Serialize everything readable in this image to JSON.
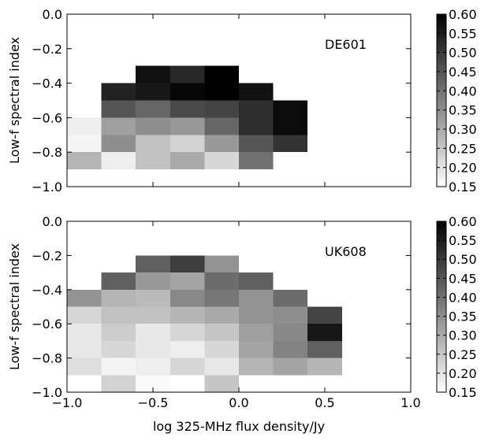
{
  "xlabel": "log 325-MHz flux density/Jy",
  "colorbar_ticks": [
    "0.60",
    "0.55",
    "0.50",
    "0.45",
    "0.40",
    "0.35",
    "0.30",
    "0.25",
    "0.20",
    "0.15"
  ],
  "chart_data": [
    {
      "type": "heatmap",
      "title": "DE601",
      "ylabel": "Low-f spectral index",
      "xlabel": "",
      "xlim": [
        -1.0,
        1.0
      ],
      "ylim": [
        -1.0,
        0.0
      ],
      "clim": [
        0.15,
        0.6
      ],
      "colormap": "gray_r",
      "x_bin_edges": [
        -1.0,
        -0.8,
        -0.6,
        -0.4,
        -0.2,
        0.0,
        0.2,
        0.4
      ],
      "y_bin_edges": [
        -0.9,
        -0.8,
        -0.7,
        -0.6,
        -0.5,
        -0.4,
        -0.3
      ],
      "y_ticks": [
        "0.0",
        "−0.2",
        "−0.4",
        "−0.6",
        "−0.8",
        "−1.0"
      ],
      "cells": [
        {
          "x": -0.9,
          "y": -0.85,
          "value": 0.28
        },
        {
          "x": -0.7,
          "y": -0.85,
          "value": 0.18
        },
        {
          "x": -0.5,
          "y": -0.85,
          "value": 0.26
        },
        {
          "x": -0.3,
          "y": -0.85,
          "value": 0.3
        },
        {
          "x": -0.1,
          "y": -0.85,
          "value": 0.22
        },
        {
          "x": 0.1,
          "y": -0.85,
          "value": 0.4
        },
        {
          "x": -0.9,
          "y": -0.75,
          "value": 0.17
        },
        {
          "x": -0.7,
          "y": -0.75,
          "value": 0.35
        },
        {
          "x": -0.5,
          "y": -0.75,
          "value": 0.26
        },
        {
          "x": -0.3,
          "y": -0.75,
          "value": 0.23
        },
        {
          "x": -0.1,
          "y": -0.75,
          "value": 0.33
        },
        {
          "x": 0.1,
          "y": -0.75,
          "value": 0.45
        },
        {
          "x": 0.3,
          "y": -0.75,
          "value": 0.51
        },
        {
          "x": -0.9,
          "y": -0.65,
          "value": 0.18
        },
        {
          "x": -0.7,
          "y": -0.65,
          "value": 0.32
        },
        {
          "x": -0.5,
          "y": -0.65,
          "value": 0.35
        },
        {
          "x": -0.3,
          "y": -0.65,
          "value": 0.33
        },
        {
          "x": -0.1,
          "y": -0.65,
          "value": 0.42
        },
        {
          "x": 0.1,
          "y": -0.65,
          "value": 0.52
        },
        {
          "x": 0.3,
          "y": -0.65,
          "value": 0.58
        },
        {
          "x": -0.7,
          "y": -0.55,
          "value": 0.45
        },
        {
          "x": -0.5,
          "y": -0.55,
          "value": 0.42
        },
        {
          "x": -0.3,
          "y": -0.55,
          "value": 0.47
        },
        {
          "x": -0.1,
          "y": -0.55,
          "value": 0.48
        },
        {
          "x": 0.1,
          "y": -0.55,
          "value": 0.52
        },
        {
          "x": 0.3,
          "y": -0.55,
          "value": 0.58
        },
        {
          "x": -0.7,
          "y": -0.45,
          "value": 0.54
        },
        {
          "x": -0.5,
          "y": -0.45,
          "value": 0.56
        },
        {
          "x": -0.3,
          "y": -0.45,
          "value": 0.59
        },
        {
          "x": -0.1,
          "y": -0.45,
          "value": 0.6
        },
        {
          "x": 0.1,
          "y": -0.45,
          "value": 0.57
        },
        {
          "x": -0.5,
          "y": -0.35,
          "value": 0.57
        },
        {
          "x": -0.3,
          "y": -0.35,
          "value": 0.53
        },
        {
          "x": -0.1,
          "y": -0.35,
          "value": 0.6
        }
      ]
    },
    {
      "type": "heatmap",
      "title": "UK608",
      "ylabel": "Low-f spectral index",
      "xlabel": "log 325-MHz flux density/Jy",
      "xlim": [
        -1.0,
        1.0
      ],
      "ylim": [
        -1.0,
        0.0
      ],
      "clim": [
        0.15,
        0.6
      ],
      "colormap": "gray_r",
      "x_bin_edges": [
        -1.0,
        -0.8,
        -0.6,
        -0.4,
        -0.2,
        0.0,
        0.2,
        0.4,
        0.6
      ],
      "y_bin_edges": [
        -1.0,
        -0.9,
        -0.8,
        -0.7,
        -0.6,
        -0.5,
        -0.4,
        -0.3,
        -0.2
      ],
      "x_ticks": [
        "−1.0",
        "−0.5",
        "0.0",
        "0.5",
        "1.0"
      ],
      "y_ticks": [
        "0.0",
        "−0.2",
        "−0.4",
        "−0.6",
        "−0.8",
        "−1.0"
      ],
      "cells": [
        {
          "x": -0.7,
          "y": -0.95,
          "value": 0.23
        },
        {
          "x": -0.5,
          "y": -0.95,
          "value": 0.16
        },
        {
          "x": -0.1,
          "y": -0.95,
          "value": 0.25
        },
        {
          "x": -0.9,
          "y": -0.85,
          "value": 0.21
        },
        {
          "x": -0.7,
          "y": -0.85,
          "value": 0.17
        },
        {
          "x": -0.5,
          "y": -0.85,
          "value": 0.18
        },
        {
          "x": -0.3,
          "y": -0.85,
          "value": 0.22
        },
        {
          "x": -0.1,
          "y": -0.85,
          "value": 0.19
        },
        {
          "x": 0.1,
          "y": -0.85,
          "value": 0.28
        },
        {
          "x": 0.3,
          "y": -0.85,
          "value": 0.31
        },
        {
          "x": 0.5,
          "y": -0.85,
          "value": 0.28
        },
        {
          "x": -0.9,
          "y": -0.75,
          "value": 0.19
        },
        {
          "x": -0.7,
          "y": -0.75,
          "value": 0.22
        },
        {
          "x": -0.5,
          "y": -0.75,
          "value": 0.19
        },
        {
          "x": -0.3,
          "y": -0.75,
          "value": 0.18
        },
        {
          "x": -0.1,
          "y": -0.75,
          "value": 0.22
        },
        {
          "x": 0.1,
          "y": -0.75,
          "value": 0.31
        },
        {
          "x": 0.3,
          "y": -0.75,
          "value": 0.37
        },
        {
          "x": 0.5,
          "y": -0.75,
          "value": 0.43
        },
        {
          "x": -0.9,
          "y": -0.65,
          "value": 0.19
        },
        {
          "x": -0.7,
          "y": -0.65,
          "value": 0.24
        },
        {
          "x": -0.5,
          "y": -0.65,
          "value": 0.19
        },
        {
          "x": -0.3,
          "y": -0.65,
          "value": 0.22
        },
        {
          "x": -0.1,
          "y": -0.65,
          "value": 0.25
        },
        {
          "x": 0.1,
          "y": -0.65,
          "value": 0.32
        },
        {
          "x": 0.3,
          "y": -0.65,
          "value": 0.36
        },
        {
          "x": 0.5,
          "y": -0.65,
          "value": 0.56
        },
        {
          "x": -0.9,
          "y": -0.55,
          "value": 0.22
        },
        {
          "x": -0.7,
          "y": -0.55,
          "value": 0.26
        },
        {
          "x": -0.5,
          "y": -0.55,
          "value": 0.26
        },
        {
          "x": -0.3,
          "y": -0.55,
          "value": 0.28
        },
        {
          "x": -0.1,
          "y": -0.55,
          "value": 0.3
        },
        {
          "x": 0.1,
          "y": -0.55,
          "value": 0.34
        },
        {
          "x": 0.3,
          "y": -0.55,
          "value": 0.35
        },
        {
          "x": 0.5,
          "y": -0.55,
          "value": 0.48
        },
        {
          "x": -0.9,
          "y": -0.45,
          "value": 0.34
        },
        {
          "x": -0.7,
          "y": -0.45,
          "value": 0.28
        },
        {
          "x": -0.5,
          "y": -0.45,
          "value": 0.27
        },
        {
          "x": -0.3,
          "y": -0.45,
          "value": 0.36
        },
        {
          "x": -0.1,
          "y": -0.45,
          "value": 0.39
        },
        {
          "x": 0.1,
          "y": -0.45,
          "value": 0.34
        },
        {
          "x": 0.3,
          "y": -0.45,
          "value": 0.41
        },
        {
          "x": -0.7,
          "y": -0.35,
          "value": 0.43
        },
        {
          "x": -0.5,
          "y": -0.35,
          "value": 0.33
        },
        {
          "x": -0.3,
          "y": -0.35,
          "value": 0.31
        },
        {
          "x": -0.1,
          "y": -0.35,
          "value": 0.41
        },
        {
          "x": 0.1,
          "y": -0.35,
          "value": 0.43
        },
        {
          "x": -0.5,
          "y": -0.25,
          "value": 0.43
        },
        {
          "x": -0.3,
          "y": -0.25,
          "value": 0.49
        },
        {
          "x": -0.1,
          "y": -0.25,
          "value": 0.34
        }
      ]
    }
  ]
}
